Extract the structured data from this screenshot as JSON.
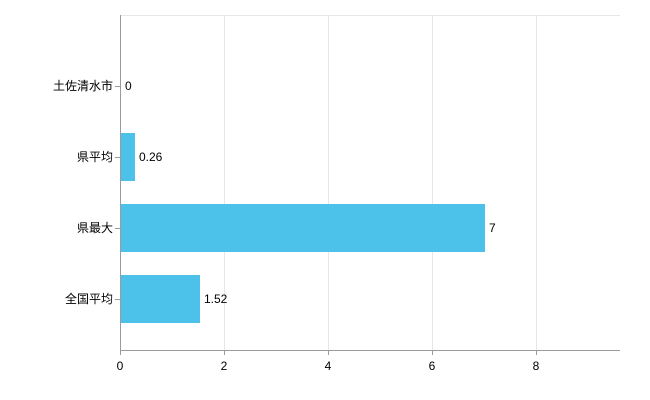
{
  "chart_data": {
    "type": "bar",
    "orientation": "horizontal",
    "title": "",
    "xlabel": "",
    "ylabel": "",
    "categories": [
      "土佐清水市",
      "県平均",
      "県最大",
      "全国平均"
    ],
    "values": [
      0,
      0.26,
      7,
      1.52
    ],
    "value_labels": [
      "0",
      "0.26",
      "7",
      "1.52"
    ],
    "xlim": [
      0,
      8
    ],
    "x_ticks": [
      0,
      2,
      4,
      6,
      8
    ],
    "grid": true,
    "legend": "none",
    "bar_color": "#4cc2eb",
    "axis_color": "#9b9b9b",
    "grid_color": "#e6e6e6",
    "text_color": "#000000"
  }
}
